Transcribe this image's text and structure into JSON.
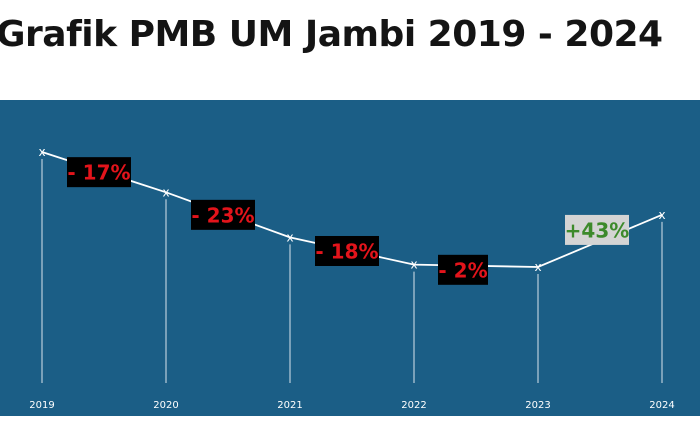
{
  "title": "Grafik PMB UM Jambi 2019 - 2024",
  "colors": {
    "background": "#1b5e86",
    "line": "#ffffff",
    "decrease_box": "#000000",
    "decrease_text": "#e3141b",
    "increase_box": "#d4d4d4",
    "increase_text": "#3d8a2b"
  },
  "chart_data": {
    "type": "line",
    "title": "Grafik PMB UM Jambi 2019 - 2024",
    "categories": [
      "2019",
      "2020",
      "2021",
      "2022",
      "2023",
      "2024"
    ],
    "values": [
      100,
      83,
      64,
      52.5,
      51.5,
      73.5
    ],
    "marker": "x",
    "y_axis_shown": false,
    "grid": false,
    "annotations": [
      {
        "between": [
          "2019",
          "2020"
        ],
        "text": "- 17%",
        "kind": "decrease"
      },
      {
        "between": [
          "2020",
          "2021"
        ],
        "text": "- 23%",
        "kind": "decrease"
      },
      {
        "between": [
          "2021",
          "2022"
        ],
        "text": "- 18%",
        "kind": "decrease"
      },
      {
        "between": [
          "2022",
          "2023"
        ],
        "text": "- 2%",
        "kind": "decrease"
      },
      {
        "between": [
          "2023",
          "2024"
        ],
        "text": "+43%",
        "kind": "increase"
      }
    ]
  }
}
